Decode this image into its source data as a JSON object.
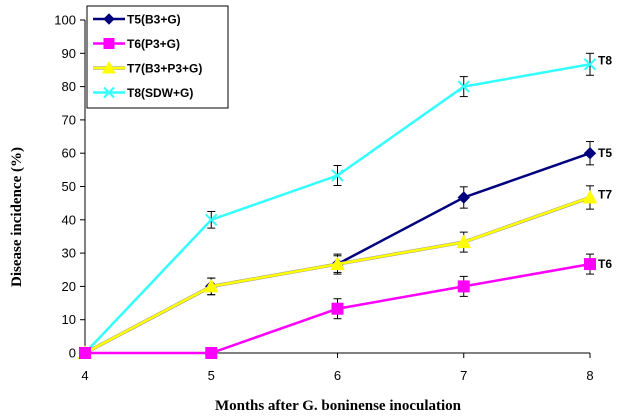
{
  "chart_data": {
    "type": "line",
    "xlabel": "Months after G. boninense inoculation",
    "ylabel": "Disease incidence (%)",
    "x": [
      4,
      5,
      6,
      7,
      8
    ],
    "xlim": [
      4,
      8
    ],
    "ylim": [
      0,
      100
    ],
    "yticks": [
      0,
      10,
      20,
      30,
      40,
      50,
      60,
      70,
      80,
      90,
      100
    ],
    "xticks": [
      4,
      5,
      6,
      7,
      8
    ],
    "grid": false,
    "legend_position": "top-left",
    "series": [
      {
        "name": "T5(B3+G)",
        "end_label": "T5",
        "color": "#00007f",
        "marker": "diamond",
        "values": [
          0,
          20,
          26.7,
          46.7,
          60
        ],
        "error": [
          0,
          2.5,
          3,
          3.2,
          3.5
        ]
      },
      {
        "name": "T6(P3+G)",
        "end_label": "T6",
        "color": "#ff00ff",
        "marker": "square",
        "values": [
          0,
          0,
          13.3,
          20,
          26.7
        ],
        "error": [
          0,
          0,
          3,
          3,
          3
        ]
      },
      {
        "name": "T7(B3+P3+G)",
        "end_label": "T7",
        "color": "#ffff00",
        "marker": "triangle",
        "values": [
          0,
          20,
          26.7,
          33.3,
          46.7
        ],
        "error": [
          0,
          2.5,
          2.5,
          3,
          3.5
        ]
      },
      {
        "name": "T8(SDW+G)",
        "end_label": "T8",
        "color": "#33ffff",
        "marker": "x",
        "values": [
          0,
          40,
          53.3,
          80,
          86.7
        ],
        "error": [
          0,
          2.5,
          3,
          3,
          3.3
        ]
      }
    ]
  }
}
